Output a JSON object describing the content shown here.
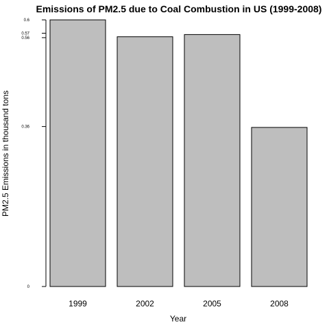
{
  "chart_data": {
    "type": "bar",
    "title": "Emissions of PM2.5 due to Coal Combustion in US (1999-2008)",
    "xlabel": "Year",
    "ylabel": "PM2.5  Emissions in thousand tons",
    "categories": [
      "1999",
      "2002",
      "2005",
      "2008"
    ],
    "values": [
      0.6,
      0.562,
      0.567,
      0.358
    ],
    "ylim": [
      0,
      0.6
    ],
    "yticks": [
      0,
      0.36,
      0.56,
      0.57,
      0.6
    ],
    "ytick_labels": [
      "0",
      "0.36",
      "0.56",
      "0.57",
      "0.6"
    ],
    "grid": false,
    "bar_color": "#bebebe",
    "bar_edge_color": "#000000"
  }
}
